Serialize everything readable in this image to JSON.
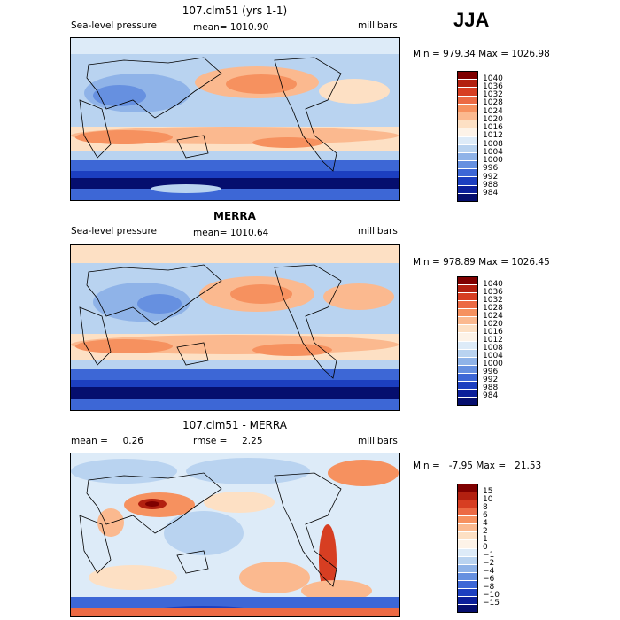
{
  "season": "JJA",
  "panels": [
    {
      "title": "107.clm51 (yrs 1-1)",
      "left_label": "Sea-level pressure",
      "center_label": "mean= 1010.90",
      "right_label": "millibars",
      "minmax": "Min = 979.34 Max = 1026.98",
      "colorbar": {
        "labels": [
          "1040",
          "1036",
          "1032",
          "1028",
          "1024",
          "1020",
          "1016",
          "1012",
          "1008",
          "1004",
          "1000",
          "996",
          "992",
          "988",
          "984"
        ],
        "colors": [
          "#7f0000",
          "#b22010",
          "#d73e22",
          "#ec6a44",
          "#f6915f",
          "#fbb98f",
          "#fde0c4",
          "#fdf3e8",
          "#ddebf8",
          "#b9d3f0",
          "#8fb3e8",
          "#6690e0",
          "#3d67d6",
          "#1c3fc0",
          "#0b1f9a",
          "#050e6e"
        ]
      }
    },
    {
      "title": "MERRA",
      "left_label": "Sea-level pressure",
      "center_label": "mean= 1010.64",
      "right_label": "millibars",
      "minmax": "Min = 978.89 Max = 1026.45",
      "colorbar": {
        "labels": [
          "1040",
          "1036",
          "1032",
          "1028",
          "1024",
          "1020",
          "1016",
          "1012",
          "1008",
          "1004",
          "1000",
          "996",
          "992",
          "988",
          "984"
        ],
        "colors": [
          "#7f0000",
          "#b22010",
          "#d73e22",
          "#ec6a44",
          "#f6915f",
          "#fbb98f",
          "#fde0c4",
          "#fdf3e8",
          "#ddebf8",
          "#b9d3f0",
          "#8fb3e8",
          "#6690e0",
          "#3d67d6",
          "#1c3fc0",
          "#0b1f9a",
          "#050e6e"
        ]
      }
    },
    {
      "title": "107.clm51 - MERRA",
      "left_label": "mean =     0.26",
      "center_label": "rmse =     2.25",
      "right_label": "millibars",
      "minmax": "Min =   -7.95 Max =   21.53",
      "colorbar": {
        "labels": [
          "15",
          "10",
          "8",
          "6",
          "4",
          "2",
          "1",
          "0",
          "−1",
          "−2",
          "−4",
          "−6",
          "−8",
          "−10",
          "−15"
        ],
        "colors": [
          "#7f0000",
          "#b22010",
          "#d73e22",
          "#ec6a44",
          "#f6915f",
          "#fbb98f",
          "#fde0c4",
          "#fdf3e8",
          "#ddebf8",
          "#b9d3f0",
          "#8fb3e8",
          "#6690e0",
          "#3d67d6",
          "#1c3fc0",
          "#0b1f9a",
          "#050e6e"
        ]
      }
    }
  ]
}
